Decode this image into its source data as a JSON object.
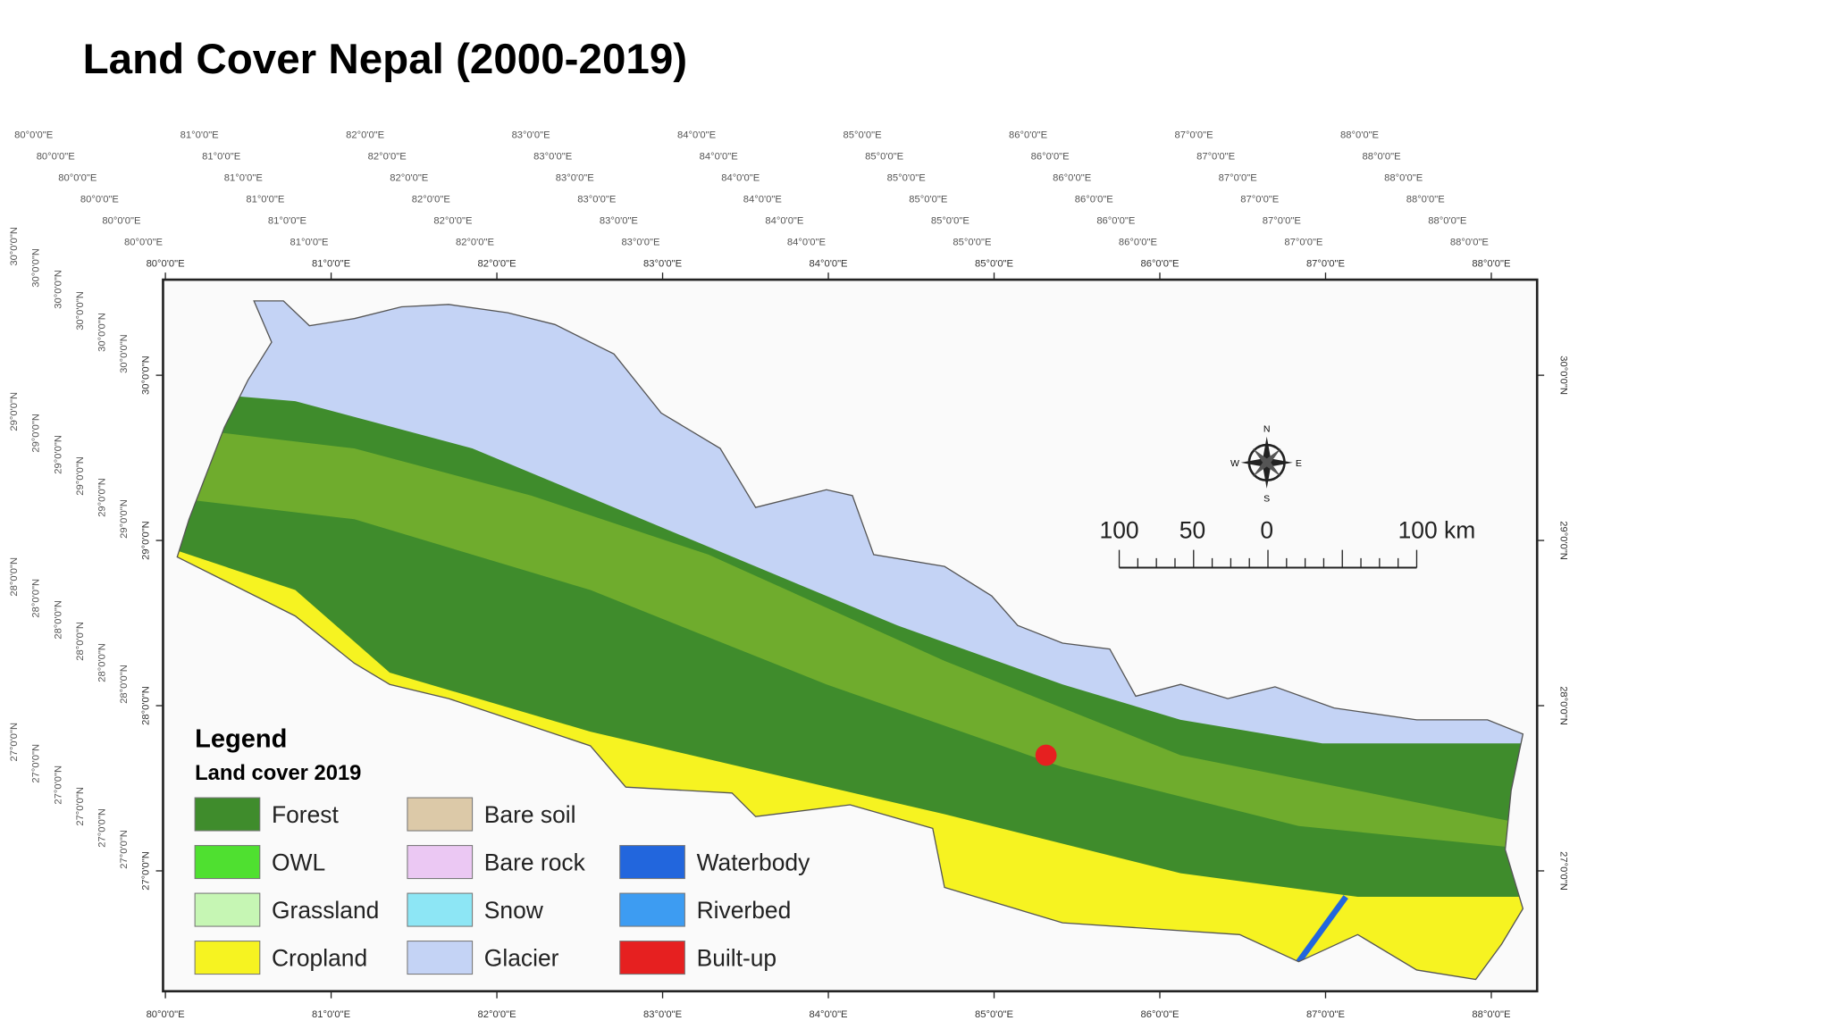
{
  "title": "Land Cover Nepal (2000-2019)",
  "map": {
    "lon_ticks": [
      "80°0'0\"E",
      "81°0'0\"E",
      "82°0'0\"E",
      "83°0'0\"E",
      "84°0'0\"E",
      "85°0'0\"E",
      "86°0'0\"E",
      "87°0'0\"E",
      "88°0'0\"E"
    ],
    "lat_ticks": [
      "30°0'0\"N",
      "29°0'0\"N",
      "28°0'0\"N",
      "27°0'0\"N"
    ],
    "compass": {
      "n": "N",
      "s": "S",
      "e": "E",
      "w": "W"
    },
    "scale_bar": [
      "100",
      "50",
      "0",
      "100 km"
    ]
  },
  "legend": {
    "title": "Legend",
    "subtitle": "Land cover 2019",
    "columns": [
      [
        {
          "name": "Forest",
          "color": "#3f8c2c"
        },
        {
          "name": "OWL",
          "color": "#4fe030"
        },
        {
          "name": "Grassland",
          "color": "#c6f6b4"
        },
        {
          "name": "Cropland",
          "color": "#f6f321"
        }
      ],
      [
        {
          "name": "Bare soil",
          "color": "#dcc9a8"
        },
        {
          "name": "Bare rock",
          "color": "#ebc8f3"
        },
        {
          "name": "Snow",
          "color": "#8de6f5"
        },
        {
          "name": "Glacier",
          "color": "#c4d3f5"
        }
      ],
      [
        {
          "name": "Waterbody",
          "color": "#2266dd"
        },
        {
          "name": "Riverbed",
          "color": "#3d9cf2"
        },
        {
          "name": "Built-up",
          "color": "#e62020"
        }
      ]
    ]
  }
}
